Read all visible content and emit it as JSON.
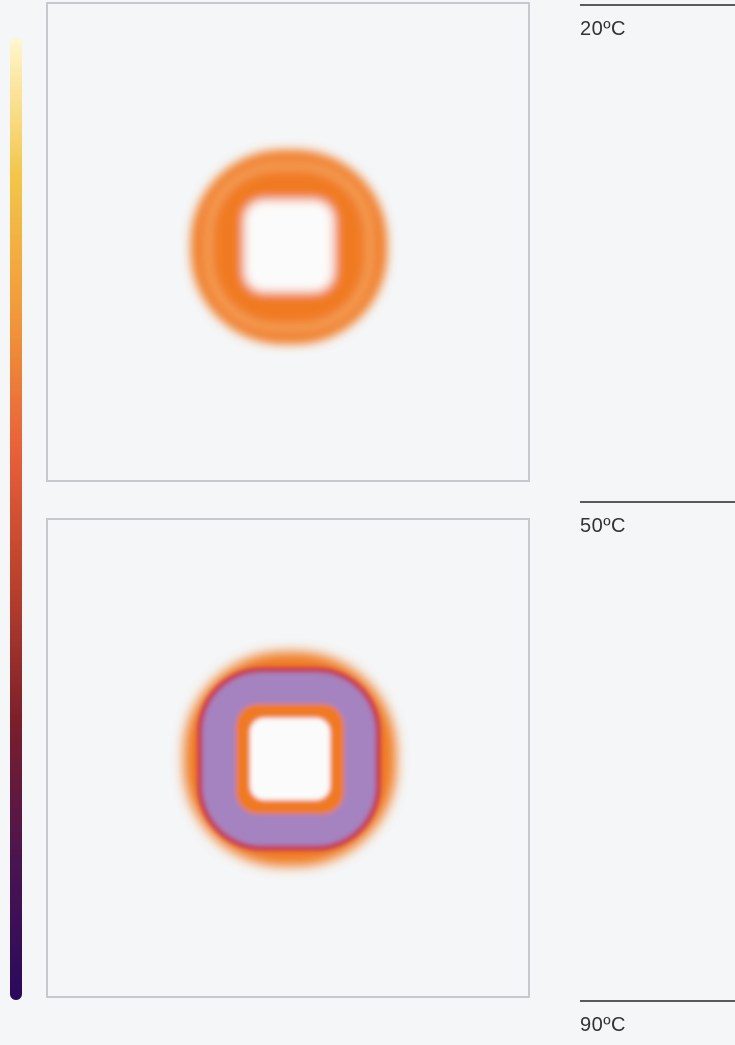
{
  "colorbar": {
    "stops": [
      "#fff7d0",
      "#f3c64a",
      "#f19a3a",
      "#e8603a",
      "#b8402c",
      "#7a1e2c",
      "#4a1450",
      "#2a0a5c"
    ]
  },
  "panels": [
    {
      "ring_color": "#f07a22",
      "ring_edge": "#f4a25a",
      "inner_color": "#fbfbfb"
    },
    {
      "ring_color": "#f07a22",
      "ring_edge": "#f4a25a",
      "inner_band_color": "#a483c0",
      "inner_band_edge": "#c2365a",
      "inner_color": "#fbfbfb"
    }
  ],
  "scale": {
    "labels": [
      "20ºC",
      "50ºC",
      "90ºC"
    ]
  }
}
